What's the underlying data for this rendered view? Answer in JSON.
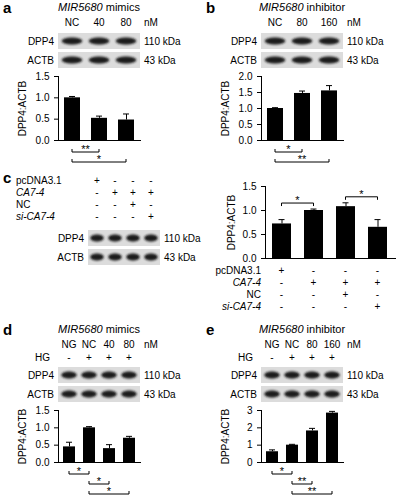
{
  "chart_data": [
    {
      "type": "bar",
      "panel": "a",
      "title": "MIR5680 mimics",
      "categories": [
        "NC",
        "40",
        "80"
      ],
      "unit": "nM",
      "blot": [
        {
          "protein": "DPP4",
          "size": "110 kDa"
        },
        {
          "protein": "ACTB",
          "size": "43 kDa"
        }
      ],
      "values": [
        1.0,
        0.52,
        0.48
      ],
      "errors": [
        0.02,
        0.04,
        0.13
      ],
      "ylabel": "DPP4:ACTB",
      "ylim": [
        0,
        1.5
      ],
      "yticks": [
        {
          "value": 0,
          "label": "0.0"
        },
        0.5,
        {
          "value": 1,
          "label": "1.0"
        },
        1.5
      ],
      "color": "#000000",
      "tick_labels": "y",
      "significance": [
        {
          "between": [
            0,
            1
          ],
          "label": "**"
        },
        {
          "between": [
            0,
            2
          ],
          "label": "*"
        }
      ]
    },
    {
      "type": "bar",
      "panel": "b",
      "title": "MIR5680 inhibitor",
      "categories": [
        "NC",
        "80",
        "160"
      ],
      "unit": "nM",
      "blot": [
        {
          "protein": "DPP4",
          "size": "110 kDa"
        },
        {
          "protein": "ACTB",
          "size": "43 kDa"
        }
      ],
      "values": [
        1.0,
        1.47,
        1.55
      ],
      "errors": [
        0.01,
        0.06,
        0.15
      ],
      "ylabel": "DPP4:ACTB",
      "ylim": [
        0,
        2
      ],
      "yticks": [
        {
          "value": 0,
          "label": "0.0"
        },
        0.5,
        {
          "value": 1,
          "label": "1.0"
        },
        1.5,
        {
          "value": 2,
          "label": "2.0"
        }
      ],
      "color": "#000000",
      "tick_labels": "y",
      "significance": [
        {
          "between": [
            0,
            1
          ],
          "label": "*"
        },
        {
          "between": [
            0,
            2
          ],
          "label": "**"
        }
      ]
    },
    {
      "type": "bar",
      "panel": "c",
      "categories": [
        null,
        null,
        null,
        null
      ],
      "conditions": [
        {
          "name": "pcDNA3.1",
          "signs": [
            "+",
            "-",
            "-",
            "-"
          ]
        },
        {
          "name": "CA7-4",
          "signs": [
            "-",
            "+",
            "+",
            "+"
          ]
        },
        {
          "name": "NC",
          "signs": [
            "-",
            "-",
            "+",
            "-"
          ]
        },
        {
          "name": "si-CA7-4",
          "signs": [
            "-",
            "-",
            "-",
            "+"
          ]
        }
      ],
      "blot": [
        {
          "protein": "DPP4",
          "size": "110 kDa"
        },
        {
          "protein": "ACTB",
          "size": "43 kDa"
        }
      ],
      "values": [
        0.72,
        1.0,
        1.08,
        0.65
      ],
      "errors": [
        0.08,
        0.02,
        0.07,
        0.15
      ],
      "ylabel": "DPP4:ACTB",
      "ylim": [
        0,
        1.5
      ],
      "yticks": [
        {
          "value": 0,
          "label": "0.0"
        },
        0.5,
        {
          "value": 1,
          "label": "1.0"
        },
        1.5
      ],
      "color": "#000000",
      "tick_labels": "y",
      "significance": [
        {
          "between": [
            0,
            1
          ],
          "label": "*"
        },
        {
          "between": [
            2,
            3
          ],
          "label": "*"
        }
      ]
    },
    {
      "type": "bar",
      "panel": "d",
      "title": "MIR5680 mimics",
      "categories": [
        "NG",
        "NC",
        "40",
        "80"
      ],
      "unit": "nM",
      "conditions": [
        {
          "name": "HG",
          "signs": [
            "-",
            "+",
            "+",
            "+"
          ]
        }
      ],
      "blot": [
        {
          "protein": "DPP4",
          "size": "110 kDa"
        },
        {
          "protein": "ACTB",
          "size": "43 kDa"
        }
      ],
      "values": [
        0.45,
        1.0,
        0.4,
        0.7
      ],
      "errors": [
        0.12,
        0.02,
        0.1,
        0.04
      ],
      "ylabel": "DPP4:ACTB",
      "ylim": [
        0,
        1.5
      ],
      "yticks": [
        {
          "value": 0,
          "label": "0.0"
        },
        0.5,
        {
          "value": 1,
          "label": "1.0"
        },
        1.5
      ],
      "color": "#000000",
      "tick_labels": "y",
      "significance": [
        {
          "between": [
            0,
            1
          ],
          "label": "*"
        },
        {
          "between": [
            1,
            2
          ],
          "label": "*"
        },
        {
          "between": [
            1,
            3
          ],
          "label": "*"
        }
      ]
    },
    {
      "type": "bar",
      "panel": "e",
      "title": "MIR5680 inhibitor",
      "categories": [
        "NG",
        "NC",
        "80",
        "160"
      ],
      "unit": "nM",
      "conditions": [
        {
          "name": "HG",
          "signs": [
            "-",
            "+",
            "+",
            "+"
          ]
        }
      ],
      "blot": [
        {
          "protein": "DPP4",
          "size": "110 kDa"
        },
        {
          "protein": "ACTB",
          "size": "43 kDa"
        }
      ],
      "values": [
        0.62,
        1.0,
        1.82,
        2.85
      ],
      "errors": [
        0.08,
        0.02,
        0.12,
        0.07
      ],
      "ylabel": "DPP4:ACTB",
      "ylim": [
        0,
        3
      ],
      "yticks": [
        0,
        1,
        2,
        3
      ],
      "color": "#000000",
      "tick_labels": "y",
      "significance": [
        {
          "between": [
            0,
            1
          ],
          "label": "*"
        },
        {
          "between": [
            1,
            2
          ],
          "label": "**"
        },
        {
          "between": [
            1,
            3
          ],
          "label": "**"
        }
      ]
    }
  ]
}
